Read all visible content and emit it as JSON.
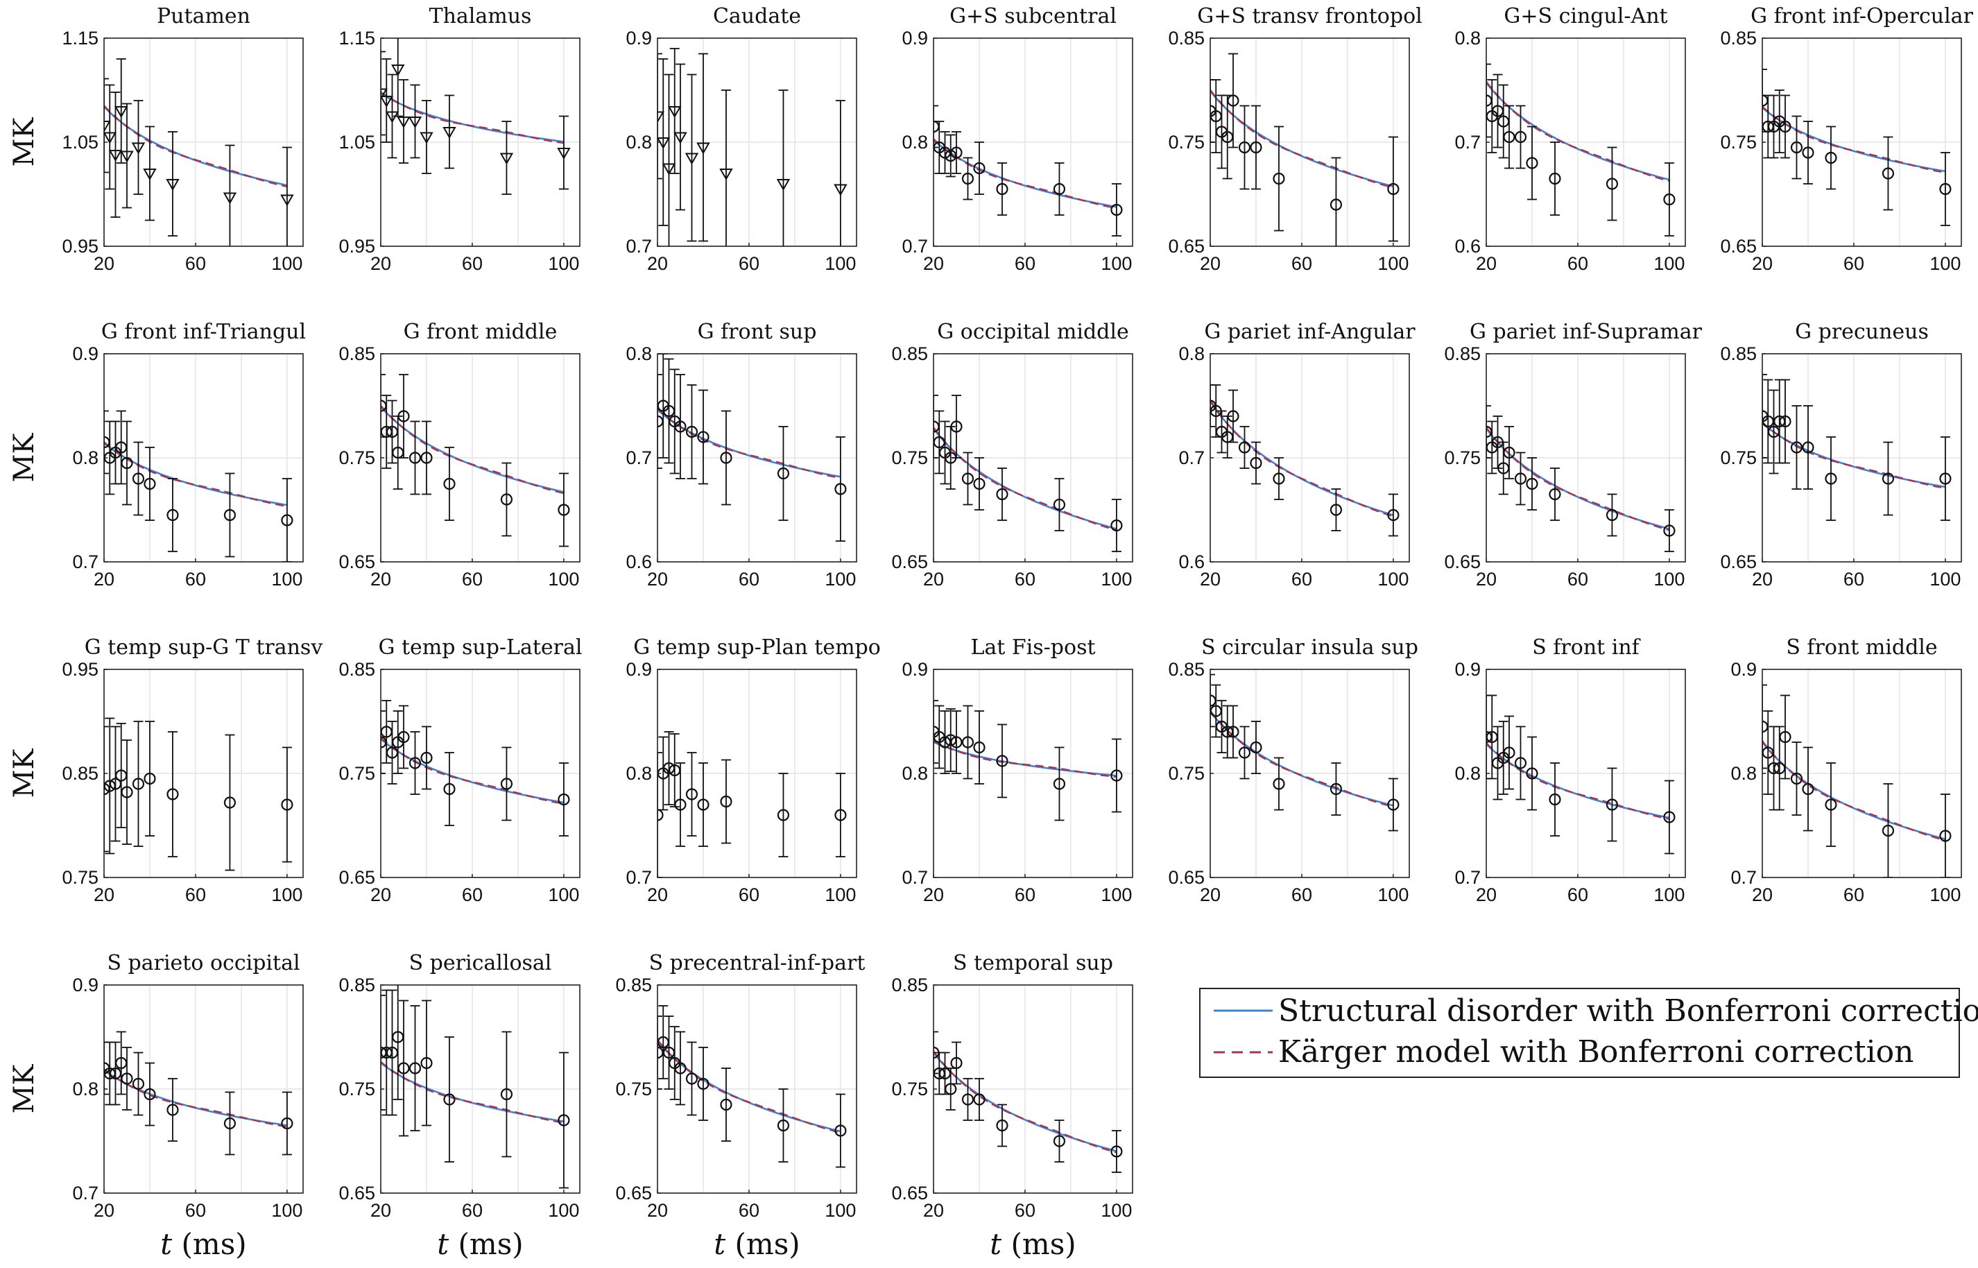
{
  "colors": {
    "structural": "#3f83d6",
    "karger": "#a6344e",
    "marker": "#111111",
    "grid": "#e4e4e4"
  },
  "legend": {
    "structural_label": "Structural disorder with Bonferroni correction",
    "karger_label": "Kärger model with Bonferroni correction"
  },
  "chart_data": {
    "type": "scatter",
    "panel_grid": "4 rows x 7 columns, last row has 4 panels plus legend",
    "x_values_ms": [
      20,
      22.5,
      25,
      27.5,
      30,
      35,
      40,
      50,
      75,
      100
    ],
    "xlabel_prefix": "t",
    "xlabel_units": "(ms)",
    "ylabel": "MK",
    "panels": [
      {
        "title": "Putamen",
        "ylim": [
          0.95,
          1.15
        ],
        "yticks": [
          "0.95",
          "1.05",
          "1.15"
        ],
        "marker": "triangle",
        "fit": true,
        "y": [
          1.066,
          1.055,
          1.038,
          1.08,
          1.037,
          1.045,
          1.02,
          1.01,
          0.997,
          0.995
        ],
        "err": [
          0.045,
          0.05,
          0.06,
          0.05,
          0.05,
          0.045,
          0.045,
          0.05,
          0.05,
          0.05
        ],
        "fit_a": 1.225,
        "fit_b": 0.047
      },
      {
        "title": "Thalamus",
        "ylim": [
          0.95,
          1.15
        ],
        "yticks": [
          "0.95",
          "1.05",
          "1.15"
        ],
        "marker": "triangle",
        "fit": true,
        "y": [
          1.097,
          1.09,
          1.075,
          1.12,
          1.07,
          1.07,
          1.055,
          1.06,
          1.035,
          1.04
        ],
        "err": [
          0.04,
          0.04,
          0.04,
          0.045,
          0.04,
          0.035,
          0.035,
          0.035,
          0.035,
          0.035
        ],
        "fit_a": 1.184,
        "fit_b": 0.029
      },
      {
        "title": "Caudate",
        "ylim": [
          0.7,
          0.9
        ],
        "yticks": [
          "0.7",
          "0.8",
          "0.9"
        ],
        "marker": "triangle",
        "fit": false,
        "y": [
          0.825,
          0.8,
          0.775,
          0.83,
          0.805,
          0.785,
          0.795,
          0.77,
          0.76,
          0.755
        ],
        "err": [
          0.06,
          0.08,
          0.09,
          0.06,
          0.07,
          0.08,
          0.09,
          0.08,
          0.09,
          0.085
        ]
      },
      {
        "title": "G+S subcentral",
        "ylim": [
          0.7,
          0.9
        ],
        "yticks": [
          "0.7",
          "0.8",
          "0.9"
        ],
        "marker": "circle",
        "fit": true,
        "y": [
          0.815,
          0.795,
          0.79,
          0.787,
          0.79,
          0.765,
          0.775,
          0.755,
          0.755,
          0.735
        ],
        "err": [
          0.02,
          0.025,
          0.02,
          0.02,
          0.02,
          0.02,
          0.025,
          0.025,
          0.025,
          0.025
        ],
        "fit_a": 0.922,
        "fit_b": 0.04
      },
      {
        "title": "G+S transv frontopol",
        "ylim": [
          0.65,
          0.85
        ],
        "yticks": [
          "0.65",
          "0.75",
          "0.85"
        ],
        "marker": "circle",
        "fit": true,
        "y": [
          0.78,
          0.775,
          0.76,
          0.755,
          0.79,
          0.745,
          0.745,
          0.715,
          0.69,
          0.705
        ],
        "err": [
          0.03,
          0.035,
          0.035,
          0.04,
          0.045,
          0.04,
          0.04,
          0.05,
          0.045,
          0.05
        ],
        "fit_a": 0.97,
        "fit_b": 0.057
      },
      {
        "title": "G+S cingul-Ant",
        "ylim": [
          0.6,
          0.8
        ],
        "yticks": [
          "0.6",
          "0.7",
          "0.8"
        ],
        "marker": "circle",
        "fit": true,
        "y": [
          0.74,
          0.725,
          0.73,
          0.72,
          0.705,
          0.705,
          0.68,
          0.665,
          0.66,
          0.645
        ],
        "err": [
          0.035,
          0.035,
          0.035,
          0.035,
          0.03,
          0.03,
          0.035,
          0.035,
          0.035,
          0.035
        ],
        "fit_a": 0.931,
        "fit_b": 0.058
      },
      {
        "title": "G front inf-Opercular",
        "ylim": [
          0.65,
          0.85
        ],
        "yticks": [
          "0.65",
          "0.75",
          "0.85"
        ],
        "marker": "circle",
        "fit": true,
        "y": [
          0.79,
          0.765,
          0.765,
          0.77,
          0.765,
          0.745,
          0.74,
          0.735,
          0.72,
          0.705
        ],
        "err": [
          0.03,
          0.03,
          0.03,
          0.03,
          0.03,
          0.03,
          0.03,
          0.03,
          0.035,
          0.035
        ],
        "fit_a": 0.897,
        "fit_b": 0.038
      },
      {
        "title": "G front inf-Triangul",
        "ylim": [
          0.7,
          0.9
        ],
        "yticks": [
          "0.7",
          "0.8",
          "0.9"
        ],
        "marker": "circle",
        "fit": true,
        "y": [
          0.815,
          0.8,
          0.805,
          0.81,
          0.795,
          0.78,
          0.775,
          0.745,
          0.745,
          0.74
        ],
        "err": [
          0.03,
          0.035,
          0.03,
          0.035,
          0.04,
          0.035,
          0.035,
          0.035,
          0.04,
          0.04
        ],
        "fit_a": 0.925,
        "fit_b": 0.037
      },
      {
        "title": "G front middle",
        "ylim": [
          0.65,
          0.85
        ],
        "yticks": [
          "0.65",
          "0.75",
          "0.85"
        ],
        "marker": "circle",
        "fit": true,
        "y": [
          0.8,
          0.775,
          0.775,
          0.755,
          0.79,
          0.75,
          0.75,
          0.725,
          0.71,
          0.7
        ],
        "err": [
          0.03,
          0.035,
          0.03,
          0.035,
          0.04,
          0.035,
          0.035,
          0.035,
          0.035,
          0.035
        ],
        "fit_a": 0.952,
        "fit_b": 0.051
      },
      {
        "title": "G front sup",
        "ylim": [
          0.6,
          0.8
        ],
        "yticks": [
          "0.6",
          "0.7",
          "0.8"
        ],
        "marker": "circle",
        "fit": true,
        "y": [
          0.735,
          0.75,
          0.745,
          0.735,
          0.73,
          0.725,
          0.72,
          0.7,
          0.685,
          0.67
        ],
        "err": [
          0.045,
          0.05,
          0.05,
          0.05,
          0.05,
          0.045,
          0.045,
          0.045,
          0.045,
          0.05
        ],
        "fit_a": 0.866,
        "fit_b": 0.04
      },
      {
        "title": "G occipital middle",
        "ylim": [
          0.65,
          0.85
        ],
        "yticks": [
          "0.65",
          "0.75",
          "0.85"
        ],
        "marker": "circle",
        "fit": true,
        "y": [
          0.78,
          0.765,
          0.755,
          0.75,
          0.78,
          0.73,
          0.725,
          0.715,
          0.705,
          0.685
        ],
        "err": [
          0.03,
          0.03,
          0.03,
          0.03,
          0.03,
          0.025,
          0.025,
          0.025,
          0.025,
          0.025
        ],
        "fit_a": 0.958,
        "fit_b": 0.06
      },
      {
        "title": "G pariet inf-Angular",
        "ylim": [
          0.6,
          0.8
        ],
        "yticks": [
          "0.6",
          "0.7",
          "0.8"
        ],
        "marker": "circle",
        "fit": true,
        "y": [
          0.75,
          0.745,
          0.725,
          0.72,
          0.74,
          0.71,
          0.695,
          0.68,
          0.65,
          0.645
        ],
        "err": [
          0.02,
          0.025,
          0.02,
          0.02,
          0.025,
          0.02,
          0.02,
          0.02,
          0.02,
          0.02
        ],
        "fit_a": 0.958,
        "fit_b": 0.068
      },
      {
        "title": "G pariet inf-Supramar",
        "ylim": [
          0.65,
          0.85
        ],
        "yticks": [
          "0.65",
          "0.75",
          "0.85"
        ],
        "marker": "circle",
        "fit": true,
        "y": [
          0.775,
          0.76,
          0.765,
          0.74,
          0.755,
          0.73,
          0.725,
          0.715,
          0.695,
          0.68
        ],
        "err": [
          0.025,
          0.025,
          0.025,
          0.025,
          0.025,
          0.025,
          0.025,
          0.025,
          0.02,
          0.02
        ],
        "fit_a": 0.958,
        "fit_b": 0.06
      },
      {
        "title": "G precuneus",
        "ylim": [
          0.65,
          0.85
        ],
        "yticks": [
          "0.65",
          "0.75",
          "0.85"
        ],
        "marker": "circle",
        "fit": true,
        "y": [
          0.79,
          0.785,
          0.775,
          0.785,
          0.785,
          0.76,
          0.76,
          0.73,
          0.73,
          0.73
        ],
        "err": [
          0.04,
          0.04,
          0.04,
          0.04,
          0.04,
          0.04,
          0.04,
          0.04,
          0.035,
          0.04
        ],
        "fit_a": 0.897,
        "fit_b": 0.038
      },
      {
        "title": "G temp sup-G T transv",
        "ylim": [
          0.75,
          0.95
        ],
        "yticks": [
          "0.75",
          "0.85",
          "0.95"
        ],
        "marker": "circle",
        "fit": false,
        "y": [
          0.835,
          0.838,
          0.84,
          0.848,
          0.832,
          0.84,
          0.845,
          0.83,
          0.822,
          0.82
        ],
        "err": [
          0.06,
          0.065,
          0.055,
          0.05,
          0.05,
          0.06,
          0.055,
          0.06,
          0.065,
          0.055
        ]
      },
      {
        "title": "G temp sup-Lateral",
        "ylim": [
          0.65,
          0.85
        ],
        "yticks": [
          "0.65",
          "0.75",
          "0.85"
        ],
        "marker": "circle",
        "fit": true,
        "y": [
          0.78,
          0.79,
          0.77,
          0.78,
          0.785,
          0.76,
          0.765,
          0.735,
          0.74,
          0.725
        ],
        "err": [
          0.03,
          0.03,
          0.03,
          0.03,
          0.03,
          0.03,
          0.03,
          0.035,
          0.035,
          0.035
        ],
        "fit_a": 0.897,
        "fit_b": 0.038
      },
      {
        "title": "G temp sup-Plan tempo",
        "ylim": [
          0.7,
          0.9
        ],
        "yticks": [
          "0.7",
          "0.8",
          "0.9"
        ],
        "marker": "circle",
        "fit": false,
        "y": [
          0.76,
          0.8,
          0.805,
          0.803,
          0.77,
          0.78,
          0.77,
          0.773,
          0.76,
          0.76
        ],
        "err": [
          0.06,
          0.035,
          0.035,
          0.035,
          0.04,
          0.04,
          0.04,
          0.04,
          0.04,
          0.04
        ]
      },
      {
        "title": "Lat Fis-post",
        "ylim": [
          0.7,
          0.9
        ],
        "yticks": [
          "0.7",
          "0.8",
          "0.9"
        ],
        "marker": "circle",
        "fit": true,
        "y": [
          0.84,
          0.835,
          0.83,
          0.832,
          0.83,
          0.83,
          0.825,
          0.812,
          0.79,
          0.798
        ],
        "err": [
          0.03,
          0.03,
          0.03,
          0.03,
          0.03,
          0.035,
          0.035,
          0.035,
          0.035,
          0.035
        ],
        "fit_a": 0.89,
        "fit_b": 0.02
      },
      {
        "title": "S circular insula sup",
        "ylim": [
          0.65,
          0.85
        ],
        "yticks": [
          "0.65",
          "0.75",
          "0.85"
        ],
        "marker": "circle",
        "fit": true,
        "y": [
          0.82,
          0.81,
          0.795,
          0.79,
          0.79,
          0.77,
          0.775,
          0.74,
          0.735,
          0.72
        ],
        "err": [
          0.025,
          0.025,
          0.025,
          0.025,
          0.025,
          0.025,
          0.025,
          0.025,
          0.025,
          0.025
        ],
        "fit_a": 0.977,
        "fit_b": 0.056
      },
      {
        "title": "S front inf",
        "ylim": [
          0.7,
          0.9
        ],
        "yticks": [
          "0.7",
          "0.8",
          "0.9"
        ],
        "marker": "circle",
        "fit": true,
        "y": [
          0.835,
          0.835,
          0.81,
          0.815,
          0.82,
          0.81,
          0.8,
          0.775,
          0.77,
          0.758
        ],
        "err": [
          0.04,
          0.04,
          0.035,
          0.035,
          0.035,
          0.035,
          0.035,
          0.035,
          0.035,
          0.035
        ],
        "fit_a": 0.96,
        "fit_b": 0.044
      },
      {
        "title": "S front middle",
        "ylim": [
          0.7,
          0.9
        ],
        "yticks": [
          "0.7",
          "0.8",
          "0.9"
        ],
        "marker": "circle",
        "fit": true,
        "y": [
          0.845,
          0.82,
          0.805,
          0.805,
          0.835,
          0.795,
          0.785,
          0.77,
          0.745,
          0.74
        ],
        "err": [
          0.04,
          0.04,
          0.04,
          0.04,
          0.04,
          0.035,
          0.04,
          0.04,
          0.045,
          0.04
        ],
        "fit_a": 1.004,
        "fit_b": 0.058
      },
      {
        "title": "S parieto occipital",
        "ylim": [
          0.7,
          0.9
        ],
        "yticks": [
          "0.7",
          "0.8",
          "0.9"
        ],
        "marker": "circle",
        "fit": true,
        "y": [
          0.82,
          0.815,
          0.815,
          0.825,
          0.81,
          0.805,
          0.795,
          0.78,
          0.767,
          0.767
        ],
        "err": [
          0.025,
          0.03,
          0.03,
          0.03,
          0.03,
          0.03,
          0.03,
          0.03,
          0.03,
          0.03
        ],
        "fit_a": 0.917,
        "fit_b": 0.033
      },
      {
        "title": "S pericallosal",
        "ylim": [
          0.65,
          0.85
        ],
        "yticks": [
          "0.65",
          "0.75",
          "0.85"
        ],
        "marker": "circle",
        "fit": true,
        "y": [
          0.785,
          0.785,
          0.785,
          0.8,
          0.77,
          0.77,
          0.775,
          0.74,
          0.745,
          0.72
        ],
        "err": [
          0.055,
          0.06,
          0.06,
          0.06,
          0.065,
          0.06,
          0.06,
          0.06,
          0.06,
          0.065
        ],
        "fit_a": 0.88,
        "fit_b": 0.035
      },
      {
        "title": "S precentral-inf-part",
        "ylim": [
          0.65,
          0.85
        ],
        "yticks": [
          "0.65",
          "0.75",
          "0.85"
        ],
        "marker": "circle",
        "fit": true,
        "y": [
          0.785,
          0.795,
          0.785,
          0.775,
          0.77,
          0.76,
          0.755,
          0.735,
          0.715,
          0.71
        ],
        "err": [
          0.035,
          0.035,
          0.035,
          0.035,
          0.035,
          0.035,
          0.035,
          0.035,
          0.035,
          0.035
        ],
        "fit_a": 0.958,
        "fit_b": 0.054
      },
      {
        "title": "S temporal sup",
        "ylim": [
          0.65,
          0.85
        ],
        "yticks": [
          "0.65",
          "0.75",
          "0.85"
        ],
        "marker": "circle",
        "fit": true,
        "y": [
          0.785,
          0.765,
          0.765,
          0.75,
          0.775,
          0.74,
          0.74,
          0.715,
          0.7,
          0.69
        ],
        "err": [
          0.02,
          0.02,
          0.02,
          0.02,
          0.02,
          0.02,
          0.02,
          0.02,
          0.02,
          0.02
        ],
        "fit_a": 0.962,
        "fit_b": 0.059
      }
    ]
  }
}
